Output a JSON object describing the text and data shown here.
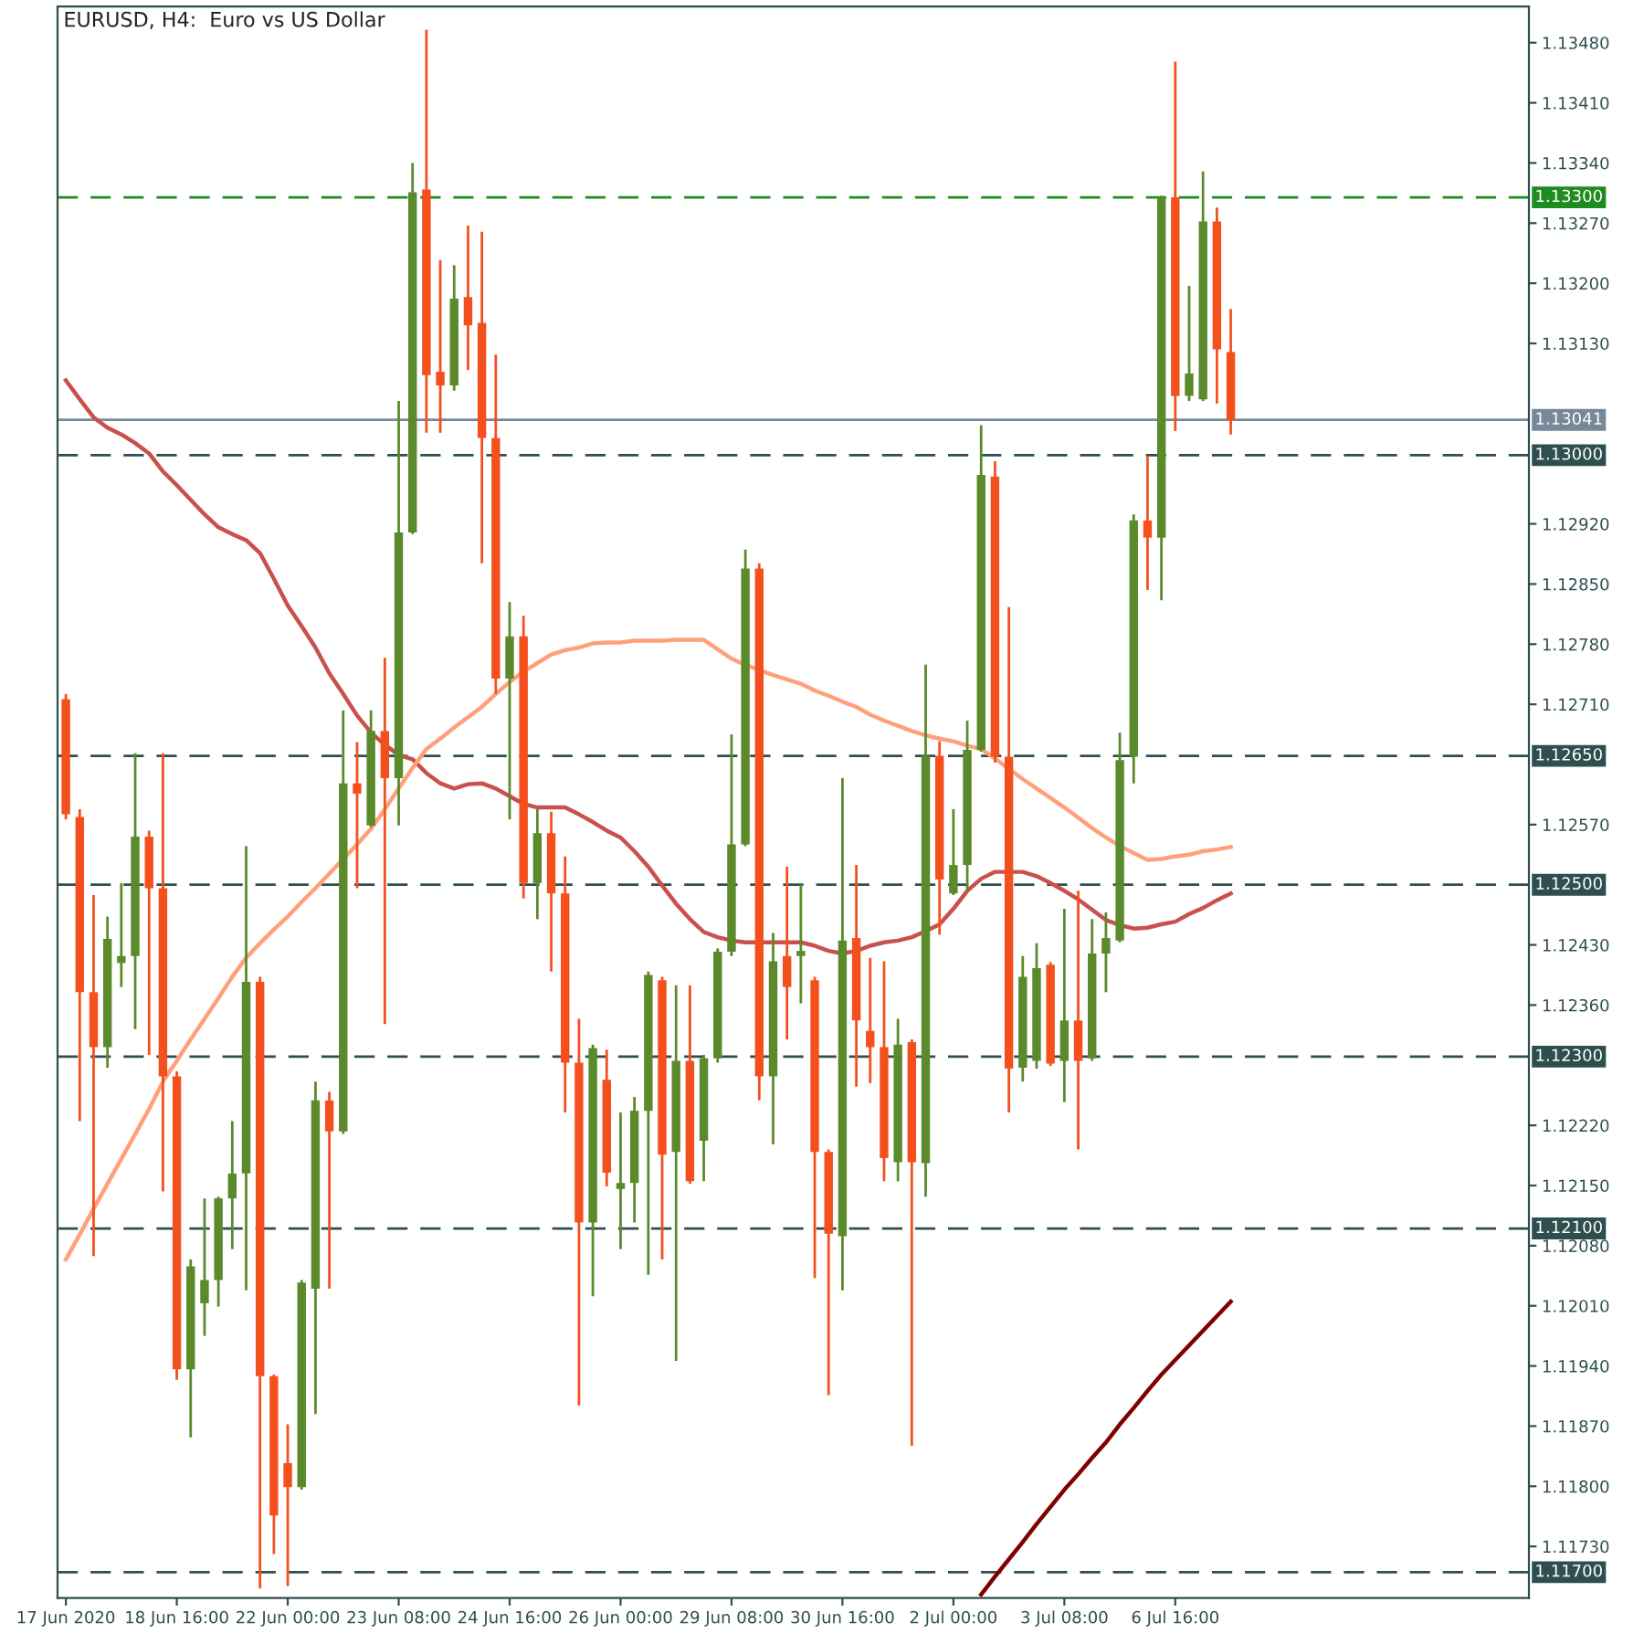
{
  "chart_data": {
    "type": "candlestick",
    "title": "EURUSD, H4:  Euro vs US Dollar",
    "categories": [
      "17 Jun 2020",
      null,
      null,
      null,
      null,
      null,
      null,
      null,
      "18 Jun 16:00",
      null,
      null,
      null,
      null,
      null,
      null,
      null,
      "22 Jun 00:00",
      null,
      null,
      null,
      null,
      null,
      null,
      null,
      "23 Jun 08:00",
      null,
      null,
      null,
      null,
      null,
      null,
      null,
      "24 Jun 16:00",
      null,
      null,
      null,
      null,
      null,
      null,
      null,
      "26 Jun 00:00",
      null,
      null,
      null,
      null,
      null,
      null,
      null,
      "29 Jun 08:00",
      null,
      null,
      null,
      null,
      null,
      null,
      null,
      "30 Jun 16:00",
      null,
      null,
      null,
      null,
      null,
      null,
      null,
      "2 Jul 00:00",
      null,
      null,
      null,
      null,
      null,
      null,
      null,
      "3 Jul 08:00",
      null,
      null,
      null,
      null,
      null,
      null,
      null,
      "6 Jul 16:00",
      null,
      null,
      null,
      null
    ],
    "ohlc": [
      [
        1.12716,
        1.12722,
        1.12576,
        1.12582
      ],
      [
        1.12579,
        1.12588,
        1.12225,
        1.12375
      ],
      [
        1.12375,
        1.12488,
        1.12068,
        1.12311
      ],
      [
        1.12311,
        1.12463,
        1.12287,
        1.12437
      ],
      [
        1.12409,
        1.12502,
        1.12381,
        1.12417
      ],
      [
        1.12417,
        1.12653,
        1.12332,
        1.12556
      ],
      [
        1.12556,
        1.12563,
        1.12302,
        1.12496
      ],
      [
        1.12496,
        1.12653,
        1.12143,
        1.12277
      ],
      [
        1.12277,
        1.12283,
        1.11924,
        1.11936
      ],
      [
        1.11936,
        1.12064,
        1.11857,
        1.12056
      ],
      [
        1.12013,
        1.12135,
        1.11975,
        1.1204
      ],
      [
        1.1204,
        1.12137,
        1.12009,
        1.12135
      ],
      [
        1.12135,
        1.12225,
        1.12076,
        1.12164
      ],
      [
        1.12164,
        1.12545,
        1.12028,
        1.12387
      ],
      [
        1.12387,
        1.12393,
        1.11681,
        1.11928
      ],
      [
        1.11928,
        1.1193,
        1.11721,
        1.11766
      ],
      [
        1.11827,
        1.11872,
        1.11684,
        1.11799
      ],
      [
        1.11799,
        1.1204,
        1.11796,
        1.12037
      ],
      [
        1.1203,
        1.12271,
        1.11884,
        1.12249
      ],
      [
        1.12249,
        1.12259,
        1.1203,
        1.12213
      ],
      [
        1.12213,
        1.12703,
        1.1221,
        1.12618
      ],
      [
        1.12618,
        1.12666,
        1.12496,
        1.12606
      ],
      [
        1.12569,
        1.12703,
        1.12567,
        1.12679
      ],
      [
        1.12679,
        1.12764,
        1.12338,
        1.12624
      ],
      [
        1.12624,
        1.13063,
        1.12569,
        1.1291
      ],
      [
        1.1291,
        1.1334,
        1.12908,
        1.13306
      ],
      [
        1.13309,
        1.13495,
        1.13026,
        1.13093
      ],
      [
        1.13097,
        1.13227,
        1.13026,
        1.13081
      ],
      [
        1.13081,
        1.13221,
        1.13075,
        1.13182
      ],
      [
        1.13184,
        1.13267,
        1.13099,
        1.13151
      ],
      [
        1.13154,
        1.1326,
        1.12874,
        1.1302
      ],
      [
        1.1302,
        1.13117,
        1.12722,
        1.1274
      ],
      [
        1.1274,
        1.12829,
        1.12576,
        1.12789
      ],
      [
        1.12789,
        1.12813,
        1.12484,
        1.12502
      ],
      [
        1.12502,
        1.12588,
        1.1246,
        1.1256
      ],
      [
        1.1256,
        1.12585,
        1.12399,
        1.1249
      ],
      [
        1.1249,
        1.12533,
        1.12235,
        1.12293
      ],
      [
        1.12293,
        1.12344,
        1.11894,
        1.12107
      ],
      [
        1.12107,
        1.12314,
        1.12021,
        1.1231
      ],
      [
        1.12273,
        1.12308,
        1.12149,
        1.12165
      ],
      [
        1.12146,
        1.12235,
        1.12076,
        1.12153
      ],
      [
        1.12153,
        1.12253,
        1.12107,
        1.12237
      ],
      [
        1.12237,
        1.12399,
        1.12046,
        1.12395
      ],
      [
        1.12389,
        1.12393,
        1.12064,
        1.12186
      ],
      [
        1.12189,
        1.12383,
        1.11946,
        1.12295
      ],
      [
        1.12295,
        1.12383,
        1.12152,
        1.12155
      ],
      [
        1.12202,
        1.12302,
        1.12155,
        1.12298
      ],
      [
        1.12298,
        1.12426,
        1.12293,
        1.12422
      ],
      [
        1.12422,
        1.12675,
        1.12417,
        1.12547
      ],
      [
        1.12547,
        1.1289,
        1.12545,
        1.12868
      ],
      [
        1.12868,
        1.12874,
        1.12249,
        1.12277
      ],
      [
        1.12277,
        1.12444,
        1.12198,
        1.12411
      ],
      [
        1.12417,
        1.12521,
        1.1232,
        1.12381
      ],
      [
        1.12417,
        1.125,
        1.12362,
        1.12423
      ],
      [
        1.12389,
        1.12393,
        1.12042,
        1.12189
      ],
      [
        1.12189,
        1.12192,
        1.11906,
        1.12094
      ],
      [
        1.12091,
        1.12624,
        1.12028,
        1.12435
      ],
      [
        1.12438,
        1.12523,
        1.12265,
        1.12342
      ],
      [
        1.1233,
        1.12415,
        1.12269,
        1.12311
      ],
      [
        1.12311,
        1.12411,
        1.12155,
        1.12182
      ],
      [
        1.12177,
        1.12344,
        1.12155,
        1.12314
      ],
      [
        1.12317,
        1.1232,
        1.11847,
        1.12177
      ],
      [
        1.12176,
        1.12756,
        1.12137,
        1.1265
      ],
      [
        1.1265,
        1.12667,
        1.12442,
        1.12506
      ],
      [
        1.1249,
        1.12588,
        1.12488,
        1.12523
      ],
      [
        1.12523,
        1.12691,
        1.12493,
        1.12657
      ],
      [
        1.12657,
        1.13035,
        1.12655,
        1.12977
      ],
      [
        1.12975,
        1.12993,
        1.12642,
        1.12649
      ],
      [
        1.12649,
        1.12823,
        1.12235,
        1.12286
      ],
      [
        1.12287,
        1.12417,
        1.12271,
        1.12393
      ],
      [
        1.12295,
        1.12432,
        1.12286,
        1.12403
      ],
      [
        1.12407,
        1.1241,
        1.12289,
        1.12292
      ],
      [
        1.12295,
        1.12472,
        1.12247,
        1.12342
      ],
      [
        1.12342,
        1.12493,
        1.12192,
        1.12295
      ],
      [
        1.12298,
        1.1246,
        1.12295,
        1.1242
      ],
      [
        1.1242,
        1.12468,
        1.12375,
        1.12438
      ],
      [
        1.12435,
        1.12677,
        1.12433,
        1.12645
      ],
      [
        1.12649,
        1.12931,
        1.12618,
        1.12924
      ],
      [
        1.12924,
        1.12999,
        1.12843,
        1.12904
      ],
      [
        1.12904,
        1.13302,
        1.12831,
        1.133
      ],
      [
        1.133,
        1.13458,
        1.13028,
        1.13069
      ],
      [
        1.13069,
        1.13197,
        1.13063,
        1.13095
      ],
      [
        1.13065,
        1.1333,
        1.13063,
        1.13272
      ],
      [
        1.13272,
        1.13288,
        1.1306,
        1.13123
      ],
      [
        1.1312,
        1.1317,
        1.13024,
        1.13041
      ]
    ],
    "colors": [
      "#f4501e",
      "#f4501e",
      "#f4501e",
      "#5a8a2b",
      "#5a8a2b",
      "#5a8a2b",
      "#f4501e",
      "#f4501e",
      "#f4501e",
      "#5a8a2b",
      "#5a8a2b",
      "#5a8a2b",
      "#5a8a2b",
      "#5a8a2b",
      "#f4501e",
      "#f4501e",
      "#f4501e",
      "#5a8a2b",
      "#5a8a2b",
      "#f4501e",
      "#5a8a2b",
      "#f4501e",
      "#5a8a2b",
      "#f4501e",
      "#5a8a2b",
      "#5a8a2b",
      "#f4501e",
      "#f4501e",
      "#5a8a2b",
      "#f4501e",
      "#f4501e",
      "#f4501e",
      "#5a8a2b",
      "#f4501e",
      "#5a8a2b",
      "#f4501e",
      "#f4501e",
      "#f4501e",
      "#5a8a2b",
      "#f4501e",
      "#5a8a2b",
      "#5a8a2b",
      "#5a8a2b",
      "#f4501e",
      "#5a8a2b",
      "#f4501e",
      "#5a8a2b",
      "#5a8a2b",
      "#5a8a2b",
      "#5a8a2b",
      "#f4501e",
      "#5a8a2b",
      "#f4501e",
      "#5a8a2b",
      "#f4501e",
      "#f4501e",
      "#5a8a2b",
      "#f4501e",
      "#f4501e",
      "#f4501e",
      "#5a8a2b",
      "#f4501e",
      "#5a8a2b",
      "#f4501e",
      "#5a8a2b",
      "#5a8a2b",
      "#5a8a2b",
      "#f4501e",
      "#f4501e",
      "#5a8a2b",
      "#5a8a2b",
      "#f4501e",
      "#5a8a2b",
      "#f4501e",
      "#5a8a2b",
      "#5a8a2b",
      "#5a8a2b",
      "#5a8a2b",
      "#f4501e",
      "#5a8a2b",
      "#f4501e",
      "#5a8a2b",
      "#5a8a2b",
      "#f4501e",
      "#f4501e"
    ],
    "series": [
      {
        "type": "line",
        "color": "#c9504c",
        "values": [
          1.13087,
          1.13065,
          1.13044,
          1.13032,
          1.13024,
          1.13014,
          1.13002,
          1.12981,
          1.12965,
          1.12948,
          1.12931,
          1.12916,
          1.12908,
          1.12901,
          1.12886,
          1.12856,
          1.12825,
          1.12801,
          1.12776,
          1.12746,
          1.12722,
          1.12697,
          1.12677,
          1.12663,
          1.12651,
          1.12646,
          1.1263,
          1.12618,
          1.12612,
          1.12617,
          1.12618,
          1.12612,
          1.12603,
          1.12594,
          1.1259,
          1.1259,
          1.1259,
          1.12582,
          1.12573,
          1.12563,
          1.12555,
          1.12539,
          1.12521,
          1.12499,
          1.12478,
          1.1246,
          1.12445,
          1.12439,
          1.12435,
          1.12433,
          1.12433,
          1.12433,
          1.12433,
          1.12433,
          1.12429,
          1.12423,
          1.1242,
          1.12423,
          1.12429,
          1.12433,
          1.12435,
          1.12439,
          1.12446,
          1.12454,
          1.12472,
          1.12493,
          1.12507,
          1.12515,
          1.12515,
          1.12515,
          1.1251,
          1.12502,
          1.12493,
          1.12483,
          1.12471,
          1.12459,
          1.12453,
          1.12449,
          1.1245,
          1.12454,
          1.12457,
          1.12466,
          1.12473,
          1.12482,
          1.1249
        ]
      },
      {
        "type": "line",
        "color": "#ffa07a",
        "values": [
          1.12064,
          1.12093,
          1.12123,
          1.12152,
          1.12181,
          1.1221,
          1.12239,
          1.12271,
          1.12295,
          1.1232,
          1.12344,
          1.12368,
          1.12393,
          1.12415,
          1.12432,
          1.12448,
          1.12463,
          1.1248,
          1.12496,
          1.12513,
          1.1253,
          1.12547,
          1.12565,
          1.12588,
          1.12612,
          1.12636,
          1.12658,
          1.1267,
          1.12683,
          1.12695,
          1.12707,
          1.12722,
          1.12736,
          1.12748,
          1.12758,
          1.12768,
          1.12773,
          1.12776,
          1.12781,
          1.12782,
          1.12782,
          1.12784,
          1.12784,
          1.12784,
          1.12785,
          1.12785,
          1.12785,
          1.12774,
          1.12763,
          1.12756,
          1.1275,
          1.12744,
          1.12739,
          1.12734,
          1.12726,
          1.1272,
          1.12713,
          1.12707,
          1.12698,
          1.12691,
          1.12685,
          1.12679,
          1.12674,
          1.1267,
          1.12667,
          1.12662,
          1.12658,
          1.12647,
          1.12635,
          1.12623,
          1.12612,
          1.12601,
          1.1259,
          1.12578,
          1.12566,
          1.12555,
          1.12545,
          1.12537,
          1.12529,
          1.1253,
          1.12533,
          1.12535,
          1.12539,
          1.12541,
          1.12544
        ]
      },
      {
        "type": "line",
        "color": "#800000",
        "values": [
          null,
          null,
          null,
          null,
          null,
          null,
          null,
          null,
          null,
          null,
          null,
          null,
          null,
          null,
          null,
          null,
          null,
          null,
          null,
          null,
          null,
          null,
          null,
          null,
          null,
          null,
          null,
          null,
          null,
          null,
          null,
          null,
          null,
          null,
          null,
          null,
          null,
          null,
          null,
          null,
          null,
          null,
          null,
          null,
          null,
          null,
          null,
          null,
          null,
          null,
          null,
          null,
          null,
          null,
          null,
          null,
          null,
          null,
          null,
          null,
          null,
          null,
          null,
          null,
          null,
          null,
          1.11674,
          1.11695,
          1.11715,
          1.11735,
          1.11756,
          1.11776,
          1.11796,
          1.11814,
          1.11833,
          1.11851,
          1.11872,
          1.11891,
          1.11911,
          1.1193,
          1.11947,
          1.11964,
          1.11981,
          1.11998,
          1.12015
        ]
      }
    ],
    "ylim": [
      1.1167,
      1.13522
    ],
    "yticks": [
      {
        "value": 1.1173,
        "label": "1.11730"
      },
      {
        "value": 1.118,
        "label": "1.11800"
      },
      {
        "value": 1.1187,
        "label": "1.11870"
      },
      {
        "value": 1.1194,
        "label": "1.11940"
      },
      {
        "value": 1.1201,
        "label": "1.12010"
      },
      {
        "value": 1.1208,
        "label": "1.12080"
      },
      {
        "value": 1.1215,
        "label": "1.12150"
      },
      {
        "value": 1.1222,
        "label": "1.12220"
      },
      {
        "value": 1.1236,
        "label": "1.12360"
      },
      {
        "value": 1.1243,
        "label": "1.12430"
      },
      {
        "value": 1.1257,
        "label": "1.12570"
      },
      {
        "value": 1.1271,
        "label": "1.12710"
      },
      {
        "value": 1.1278,
        "label": "1.12780"
      },
      {
        "value": 1.1285,
        "label": "1.12850"
      },
      {
        "value": 1.1292,
        "label": "1.12920"
      },
      {
        "value": 1.1313,
        "label": "1.13130"
      },
      {
        "value": 1.132,
        "label": "1.13200"
      },
      {
        "value": 1.1327,
        "label": "1.13270"
      },
      {
        "value": 1.1334,
        "label": "1.13340"
      },
      {
        "value": 1.1341,
        "label": "1.13410"
      },
      {
        "value": 1.1348,
        "label": "1.13480"
      }
    ],
    "ref_lines": [
      {
        "axis": "y",
        "value": 1.133,
        "label": "1.13300",
        "color": "#1f8c1f",
        "line_style": "dashed"
      },
      {
        "axis": "y",
        "value": 1.13041,
        "label": "1.13041",
        "color": "#778899",
        "line_style": "solid"
      },
      {
        "axis": "y",
        "value": 1.13,
        "label": "1.13000",
        "color": "#2f4f4f",
        "line_style": "dashed"
      },
      {
        "axis": "y",
        "value": 1.1265,
        "label": "1.12650",
        "color": "#2f4f4f",
        "line_style": "dashed"
      },
      {
        "axis": "y",
        "value": 1.125,
        "label": "1.12500",
        "color": "#2f4f4f",
        "line_style": "dashed"
      },
      {
        "axis": "y",
        "value": 1.123,
        "label": "1.12300",
        "color": "#2f4f4f",
        "line_style": "dashed"
      },
      {
        "axis": "y",
        "value": 1.121,
        "label": "1.12100",
        "color": "#2f4f4f",
        "line_style": "dashed"
      },
      {
        "axis": "y",
        "value": 1.117,
        "label": "1.11700",
        "color": "#2f4f4f",
        "line_style": "dashed"
      }
    ],
    "grid": false,
    "legend": false
  }
}
